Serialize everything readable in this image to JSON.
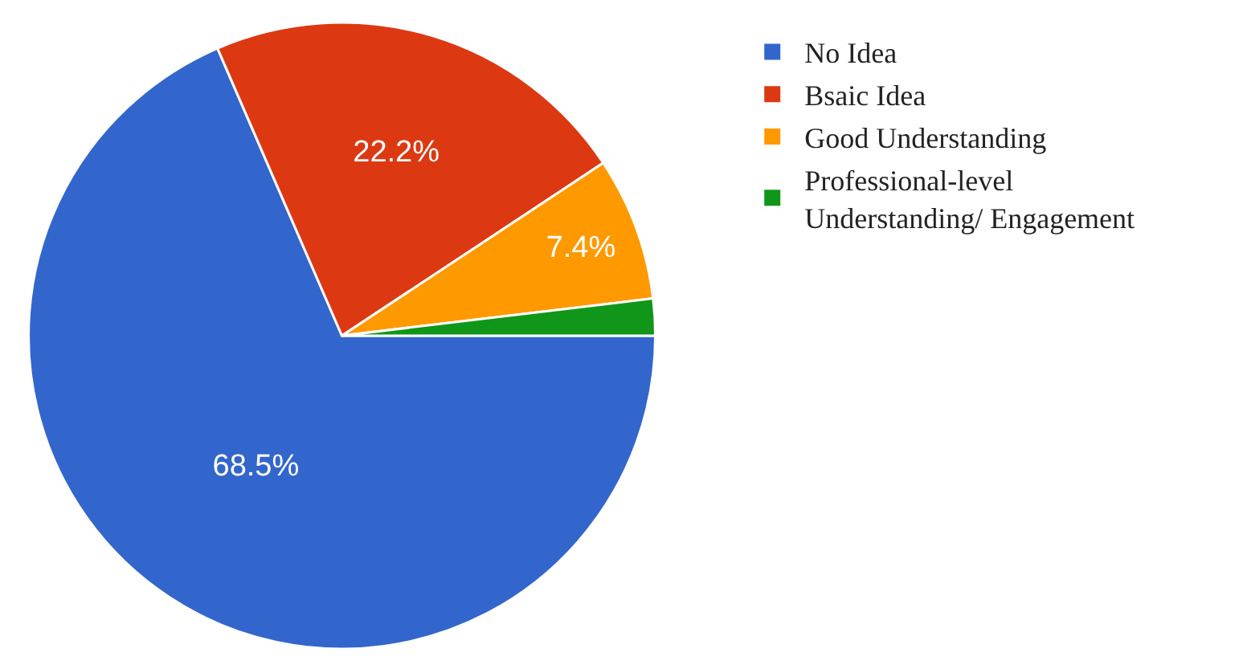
{
  "chart_data": {
    "type": "pie",
    "categories": [
      "No Idea",
      "Bsaic Idea",
      "Good Understanding",
      "Professional-level Understanding/ Engagement"
    ],
    "values": [
      68.5,
      22.2,
      7.4,
      1.9
    ],
    "colors": [
      "#3366cc",
      "#dc3912",
      "#ff9900",
      "#109618"
    ],
    "value_labels": [
      "68.5%",
      "22.2%",
      "7.4%",
      null
    ],
    "legend": "top right"
  }
}
